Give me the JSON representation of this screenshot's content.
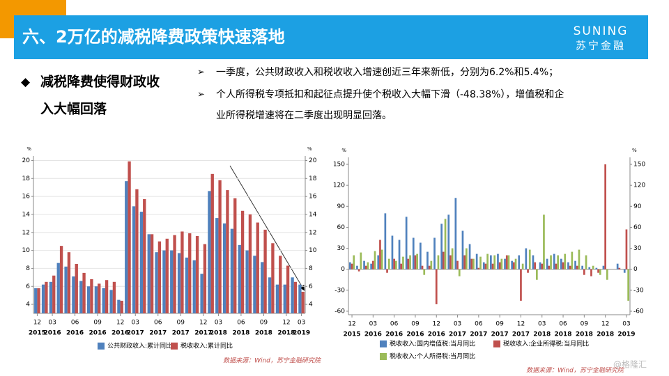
{
  "header": {
    "title": "六、2万亿的减税降费政策快速落地",
    "logo_en": "SUNING",
    "logo_cn": "苏宁金融"
  },
  "left_heading": {
    "marker": "◆",
    "lines": [
      "减税降费使得财政收",
      "入大幅回落"
    ]
  },
  "bullets": [
    {
      "marker": "➢",
      "lines": [
        "一季度，公共财政收入和税收收入增速创近三年来新低，分别为6.2%和5.4%；"
      ]
    },
    {
      "marker": "➢",
      "lines": [
        "个人所得税专项抵扣和起征点提升使个税收入大幅下滑（-48.38%），增值税和企",
        "业所得税增速将在二季度出现明显回落。"
      ]
    }
  ],
  "watermark": "@格隆汇",
  "chart_data": [
    {
      "type": "bar",
      "grid": true,
      "yunit": "%",
      "y2unit": "%",
      "categories": [
        "12",
        null,
        "03",
        null,
        null,
        "06",
        null,
        null,
        "09",
        null,
        null,
        "12",
        null,
        "03",
        null,
        null,
        "06",
        null,
        null,
        "09",
        null,
        null,
        "12",
        null,
        "03",
        null,
        null,
        "06",
        null,
        null,
        "09",
        null,
        null,
        "12",
        null,
        "03"
      ],
      "category_years": [
        "2015",
        null,
        "2016",
        null,
        null,
        "2016",
        null,
        null,
        "2016",
        null,
        null,
        "2016",
        null,
        "2017",
        null,
        null,
        "2017",
        null,
        null,
        "2017",
        null,
        null,
        "2017",
        null,
        "2018",
        null,
        null,
        "2018",
        null,
        null,
        "2018",
        null,
        null,
        "2018",
        null,
        "2019"
      ],
      "series": [
        {
          "name": "公共财政收入:累计同比",
          "color": "#4f81bd",
          "values": [
            5.8,
            6.2,
            6.5,
            8.6,
            8.2,
            7.1,
            6.6,
            6.0,
            6.0,
            5.8,
            5.6,
            4.5,
            17.7,
            14.9,
            14.3,
            11.8,
            9.8,
            10.0,
            10.0,
            9.7,
            9.2,
            8.9,
            7.4,
            16.6,
            13.6,
            13.0,
            12.4,
            10.6,
            10.0,
            9.4,
            8.7,
            7.0,
            6.2,
            6.2,
            7.0,
            6.2
          ]
        },
        {
          "name": "税收收入:累计同比",
          "color": "#c0504d",
          "values": [
            5.8,
            6.5,
            7.2,
            10.5,
            9.8,
            8.5,
            7.5,
            6.8,
            6.3,
            6.7,
            6.5,
            4.4,
            19.9,
            16.8,
            15.7,
            11.8,
            11.0,
            11.3,
            11.7,
            12.1,
            11.9,
            11.6,
            10.7,
            18.5,
            17.8,
            16.7,
            15.8,
            14.4,
            14.0,
            13.1,
            12.3,
            10.8,
            9.4,
            8.3,
            6.5,
            5.4
          ]
        }
      ],
      "ylim": [
        3,
        20.5
      ],
      "yticks": [
        4,
        6,
        8,
        10,
        12,
        14,
        16,
        18,
        20
      ],
      "y2lim": [
        3,
        20.5
      ],
      "y2ticks": [
        4,
        6,
        8,
        10,
        12,
        14,
        16,
        18,
        20
      ],
      "source": "数据来源：Wind，苏宁金融研究院"
    },
    {
      "type": "bar",
      "grid": false,
      "yunit": "%",
      "y2unit": "%",
      "categories": [
        "12",
        null,
        null,
        "03",
        null,
        null,
        "06",
        null,
        null,
        "09",
        null,
        null,
        "12",
        null,
        null,
        "03",
        null,
        null,
        "06",
        null,
        null,
        "09",
        null,
        null,
        "12",
        null,
        null,
        "03",
        null,
        null,
        "06",
        null,
        null,
        "09",
        null,
        null,
        "12",
        null,
        null,
        "03"
      ],
      "category_years": [
        "2015",
        null,
        null,
        "2016",
        null,
        null,
        "2016",
        null,
        null,
        "2016",
        null,
        null,
        "2016",
        null,
        null,
        "2017",
        null,
        null,
        "2017",
        null,
        null,
        "2017",
        null,
        null,
        "2017",
        null,
        null,
        "2018",
        null,
        null,
        "2018",
        null,
        null,
        "2018",
        null,
        null,
        "2018",
        null,
        null,
        "2019"
      ],
      "series": [
        {
          "name": "税收收入:国内增值税:当月同比",
          "color": "#4f81bd",
          "values": [
            10,
            5,
            12,
            8,
            20,
            80,
            48,
            42,
            75,
            45,
            38,
            25,
            45,
            65,
            78,
            102,
            55,
            36,
            22,
            10,
            20,
            22,
            15,
            12,
            20,
            30,
            20,
            10,
            15,
            22,
            15,
            10,
            12,
            5,
            3,
            2,
            5,
            null,
            8,
            -5
          ]
        },
        {
          "name": "税收收入:企业所得税:当月同比",
          "color": "#c0504d",
          "values": [
            8,
            -3,
            5,
            12,
            42,
            -5,
            15,
            8,
            15,
            20,
            5,
            5,
            -50,
            25,
            20,
            12,
            20,
            15,
            2,
            8,
            8,
            10,
            20,
            10,
            -45,
            -5,
            10,
            8,
            5,
            8,
            10,
            5,
            5,
            -8,
            -10,
            -5,
            150,
            null,
            2,
            57
          ]
        },
        {
          "name": "税收收入:个人所得税:当月同比",
          "color": "#9bbb59",
          "values": [
            20,
            24,
            10,
            26,
            28,
            15,
            12,
            18,
            20,
            22,
            -8,
            12,
            20,
            72,
            30,
            -10,
            30,
            15,
            18,
            22,
            20,
            15,
            20,
            15,
            8,
            28,
            -15,
            78,
            20,
            20,
            22,
            25,
            28,
            20,
            5,
            -8,
            -15,
            null,
            0,
            -45
          ]
        }
      ],
      "ylim": [
        -65,
        160
      ],
      "yticks": [
        -60,
        -30,
        0,
        30,
        60,
        90,
        120,
        150
      ],
      "y2lim": [
        -65,
        160
      ],
      "y2ticks": [
        -60,
        -30,
        0,
        30,
        60,
        90,
        120,
        150
      ],
      "source": "数据来源：Wind，苏宁金融研究院"
    }
  ]
}
